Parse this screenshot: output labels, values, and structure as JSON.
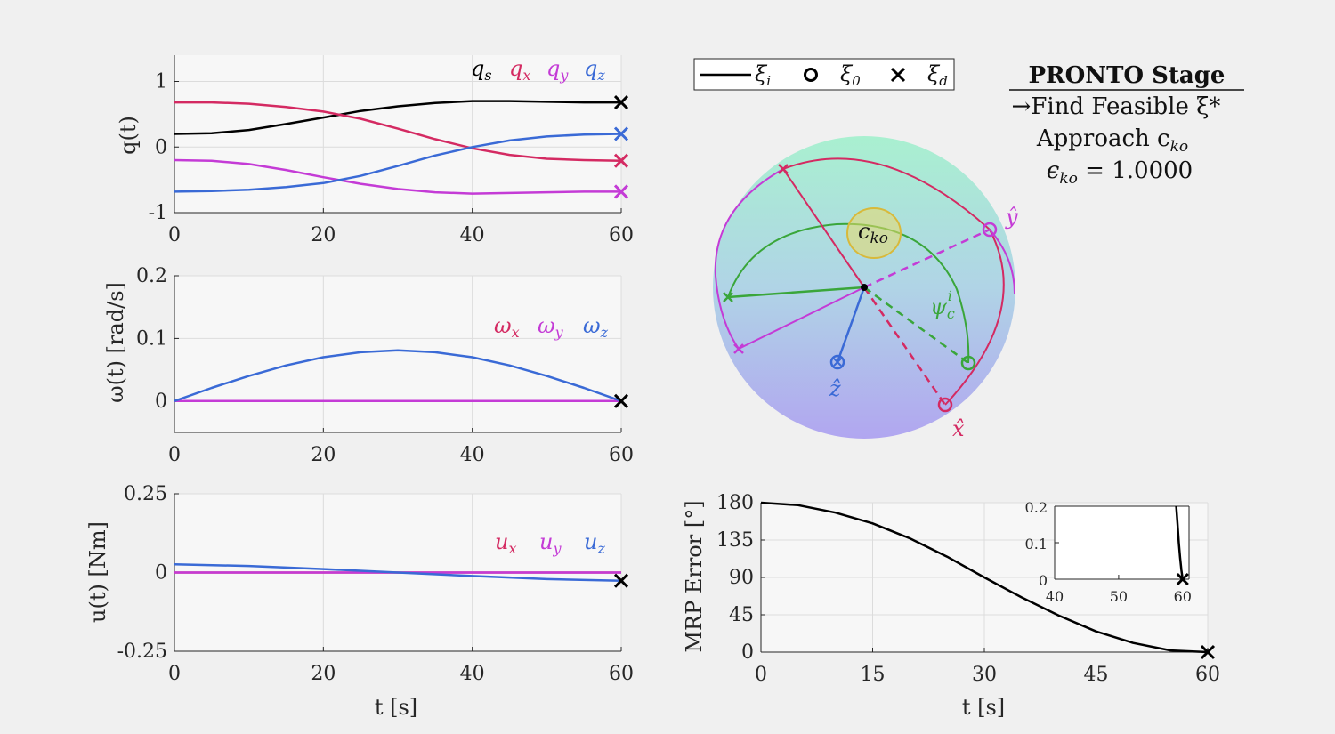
{
  "colors": {
    "black": "#000000",
    "crimson": "#d42a62",
    "magenta": "#c43bd6",
    "blue": "#3a6ad6",
    "green": "#3aa63a",
    "gold": "#d8b93a",
    "axes_bg": "#f7f7f7",
    "grid": "#dcdcdc"
  },
  "sidebar": {
    "title": "PRONTO Stage",
    "line1": "→Find Feasible ξ*",
    "line2": "Approach c",
    "line2_sub": "ko",
    "line3_eps": "ϵ",
    "line3_sub": "ko",
    "line3_val": " = 1.0000"
  },
  "legend3d": {
    "items": [
      {
        "symbol": "line",
        "base": "ξ",
        "sub": "i"
      },
      {
        "symbol": "circle",
        "base": "ξ",
        "sub": "0"
      },
      {
        "symbol": "cross",
        "base": "ξ",
        "sub": "d"
      }
    ]
  },
  "sphere": {
    "labels": {
      "x": "x̂",
      "y": "ŷ",
      "z": "ẑ",
      "psi": "ψ",
      "psi_sub": "c",
      "psi_sup": "i",
      "cko": "c",
      "cko_sub": "ko"
    }
  },
  "chart_data": [
    {
      "id": "q",
      "type": "line",
      "xlabel": "",
      "ylabel": "q(t)",
      "xlim": [
        0,
        60
      ],
      "ylim": [
        -1,
        1.4
      ],
      "xticks": [
        0,
        20,
        40,
        60
      ],
      "yticks": [
        -1,
        0,
        1
      ],
      "ytick_labels": [
        "-1",
        "0",
        "1"
      ],
      "grid": true,
      "legend_position": "top-right",
      "series": [
        {
          "name": "q",
          "sub": "s",
          "color": "#000000",
          "x": [
            0,
            5,
            10,
            15,
            20,
            25,
            30,
            35,
            40,
            45,
            50,
            55,
            60
          ],
          "y": [
            0.2,
            0.21,
            0.26,
            0.35,
            0.45,
            0.55,
            0.62,
            0.67,
            0.7,
            0.7,
            0.69,
            0.68,
            0.68
          ]
        },
        {
          "name": "q",
          "sub": "x",
          "color": "#d42a62",
          "x": [
            0,
            5,
            10,
            15,
            20,
            25,
            30,
            35,
            40,
            45,
            50,
            55,
            60
          ],
          "y": [
            0.68,
            0.68,
            0.66,
            0.61,
            0.54,
            0.43,
            0.28,
            0.12,
            -0.02,
            -0.12,
            -0.18,
            -0.2,
            -0.21
          ]
        },
        {
          "name": "q",
          "sub": "y",
          "color": "#c43bd6",
          "x": [
            0,
            5,
            10,
            15,
            20,
            25,
            30,
            35,
            40,
            45,
            50,
            55,
            60
          ],
          "y": [
            -0.2,
            -0.21,
            -0.26,
            -0.35,
            -0.46,
            -0.56,
            -0.64,
            -0.69,
            -0.71,
            -0.7,
            -0.69,
            -0.68,
            -0.68
          ]
        },
        {
          "name": "q",
          "sub": "z",
          "color": "#3a6ad6",
          "x": [
            0,
            5,
            10,
            15,
            20,
            25,
            30,
            35,
            40,
            45,
            50,
            55,
            60
          ],
          "y": [
            -0.68,
            -0.67,
            -0.65,
            -0.61,
            -0.55,
            -0.44,
            -0.29,
            -0.13,
            0.0,
            0.1,
            0.16,
            0.19,
            0.2
          ]
        }
      ]
    },
    {
      "id": "omega",
      "type": "line",
      "xlabel": "",
      "ylabel": "ω(t) [rad/s]",
      "xlim": [
        0,
        60
      ],
      "ylim": [
        -0.05,
        0.2
      ],
      "xticks": [
        0,
        20,
        40,
        60
      ],
      "yticks": [
        0,
        0.1,
        0.2
      ],
      "ytick_labels": [
        "0",
        "0.1",
        "0.2"
      ],
      "grid": true,
      "legend_position": "right",
      "series": [
        {
          "name": "ω",
          "sub": "x",
          "color": "#d42a62",
          "x": [
            0,
            60
          ],
          "y": [
            0,
            0
          ]
        },
        {
          "name": "ω",
          "sub": "y",
          "color": "#c43bd6",
          "x": [
            0,
            60
          ],
          "y": [
            0,
            0
          ]
        },
        {
          "name": "ω",
          "sub": "z",
          "color": "#3a6ad6",
          "x": [
            0,
            5,
            10,
            15,
            20,
            25,
            30,
            35,
            40,
            45,
            50,
            55,
            60
          ],
          "y": [
            0,
            0.021,
            0.04,
            0.057,
            0.07,
            0.078,
            0.081,
            0.078,
            0.07,
            0.057,
            0.04,
            0.021,
            0
          ]
        }
      ]
    },
    {
      "id": "u",
      "type": "line",
      "xlabel": "t [s]",
      "ylabel": "u(t) [Nm]",
      "xlim": [
        0,
        60
      ],
      "ylim": [
        -0.25,
        0.25
      ],
      "xticks": [
        0,
        20,
        40,
        60
      ],
      "yticks": [
        -0.25,
        0,
        0.25
      ],
      "ytick_labels": [
        "-0.25",
        "0",
        "0.25"
      ],
      "grid": true,
      "legend_position": "right",
      "series": [
        {
          "name": "u",
          "sub": "x",
          "color": "#d42a62",
          "x": [
            0,
            60
          ],
          "y": [
            0,
            0
          ]
        },
        {
          "name": "u",
          "sub": "y",
          "color": "#c43bd6",
          "x": [
            0,
            60
          ],
          "y": [
            0,
            0
          ]
        },
        {
          "name": "u",
          "sub": "z",
          "color": "#3a6ad6",
          "x": [
            0,
            10,
            20,
            30,
            40,
            50,
            60
          ],
          "y": [
            0.026,
            0.021,
            0.011,
            0,
            -0.011,
            -0.021,
            -0.026
          ]
        }
      ]
    },
    {
      "id": "mrp",
      "type": "line",
      "xlabel": "t [s]",
      "ylabel": "MRP Error [°]",
      "xlim": [
        0,
        60
      ],
      "ylim": [
        0,
        180
      ],
      "xticks": [
        0,
        15,
        30,
        45,
        60
      ],
      "yticks": [
        0,
        45,
        90,
        135,
        180
      ],
      "ytick_labels": [
        "0",
        "45",
        "90",
        "135",
        "180"
      ],
      "grid": true,
      "series": [
        {
          "name": "",
          "color": "#000000",
          "x": [
            0,
            5,
            10,
            15,
            20,
            25,
            30,
            35,
            40,
            45,
            50,
            55,
            60
          ],
          "y": [
            180,
            177,
            168,
            155,
            137,
            115,
            90,
            66,
            44,
            25,
            11,
            2,
            0
          ]
        }
      ]
    },
    {
      "id": "mrp_inset",
      "type": "line",
      "xlabel": "",
      "ylabel": "",
      "xlim": [
        40,
        61
      ],
      "ylim": [
        0,
        0.2
      ],
      "xticks": [
        40,
        50,
        60
      ],
      "yticks": [
        0,
        0.1,
        0.2
      ],
      "ytick_labels": [
        "0",
        "0.1",
        "0.2"
      ],
      "grid": false,
      "series": [
        {
          "name": "",
          "color": "#000000",
          "x": [
            59.0,
            59.2,
            59.4,
            59.6,
            59.8,
            60
          ],
          "y": [
            0.2,
            0.15,
            0.1,
            0.06,
            0.025,
            0
          ]
        }
      ]
    }
  ]
}
